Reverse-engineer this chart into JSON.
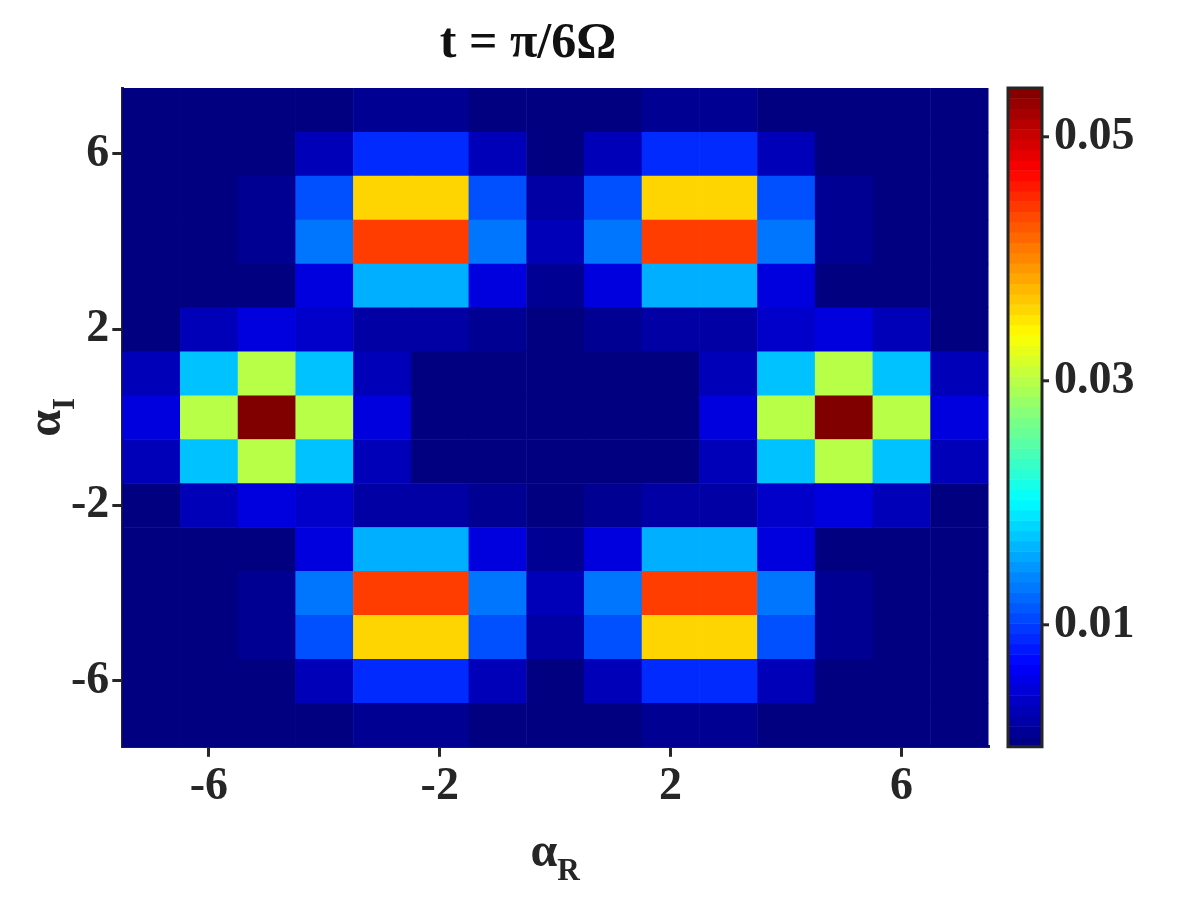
{
  "chart_data": {
    "type": "heatmap",
    "title": "t = π/6Ω",
    "xlabel": "α$_{R}$",
    "ylabel": "α$_{I}$",
    "categories": [
      null,
      "-6",
      null,
      null,
      null,
      "-2",
      null,
      null,
      null,
      "2",
      null,
      null,
      null,
      "6",
      null
    ],
    "y_categories": [
      null,
      "6",
      null,
      null,
      null,
      "2",
      null,
      null,
      null,
      "-2",
      null,
      null,
      null,
      "-6",
      null
    ],
    "clim": [
      0,
      0.054
    ],
    "cticks": [
      0.01,
      0.03,
      0.05
    ],
    "cells": [
      [
        0,
        0,
        0,
        0,
        0.001,
        0.001,
        0,
        0,
        0,
        0.001,
        0.001,
        0,
        0,
        0,
        0
      ],
      [
        0,
        0,
        0,
        0.003,
        0.009,
        0.009,
        0.003,
        0,
        0.003,
        0.009,
        0.009,
        0.003,
        0,
        0,
        0
      ],
      [
        0,
        0,
        0.001,
        0.011,
        0.036,
        0.036,
        0.011,
        0.002,
        0.011,
        0.036,
        0.036,
        0.011,
        0.001,
        0,
        0
      ],
      [
        0,
        0,
        0.001,
        0.013,
        0.044,
        0.044,
        0.013,
        0.003,
        0.013,
        0.044,
        0.044,
        0.013,
        0.001,
        0,
        0
      ],
      [
        0,
        0,
        0,
        0.005,
        0.016,
        0.016,
        0.005,
        0.001,
        0.005,
        0.016,
        0.016,
        0.005,
        0,
        0,
        0
      ],
      [
        0,
        0.003,
        0.005,
        0.004,
        0.002,
        0.002,
        0.001,
        0,
        0.001,
        0.002,
        0.002,
        0.004,
        0.005,
        0.003,
        0
      ],
      [
        0.003,
        0.017,
        0.03,
        0.017,
        0.003,
        0,
        0,
        0,
        0,
        0,
        0.003,
        0.017,
        0.03,
        0.017,
        0.003
      ],
      [
        0.005,
        0.03,
        0.054,
        0.03,
        0.005,
        0,
        0,
        0,
        0,
        0,
        0.005,
        0.03,
        0.054,
        0.03,
        0.005
      ],
      [
        0.003,
        0.017,
        0.03,
        0.017,
        0.003,
        0,
        0,
        0,
        0,
        0,
        0.003,
        0.017,
        0.03,
        0.017,
        0.003
      ],
      [
        0,
        0.003,
        0.005,
        0.004,
        0.002,
        0.002,
        0.001,
        0,
        0.001,
        0.002,
        0.002,
        0.004,
        0.005,
        0.003,
        0
      ],
      [
        0,
        0,
        0,
        0.005,
        0.016,
        0.016,
        0.005,
        0.001,
        0.005,
        0.016,
        0.016,
        0.005,
        0,
        0,
        0
      ],
      [
        0,
        0,
        0.001,
        0.013,
        0.044,
        0.044,
        0.013,
        0.003,
        0.013,
        0.044,
        0.044,
        0.013,
        0.001,
        0,
        0
      ],
      [
        0,
        0,
        0.001,
        0.011,
        0.036,
        0.036,
        0.011,
        0.002,
        0.011,
        0.036,
        0.036,
        0.011,
        0.001,
        0,
        0
      ],
      [
        0,
        0,
        0,
        0.003,
        0.009,
        0.009,
        0.003,
        0,
        0.003,
        0.009,
        0.009,
        0.003,
        0,
        0,
        0
      ],
      [
        0,
        0,
        0,
        0,
        0.001,
        0.001,
        0,
        0,
        0,
        0.001,
        0.001,
        0,
        0,
        0,
        0
      ]
    ]
  }
}
